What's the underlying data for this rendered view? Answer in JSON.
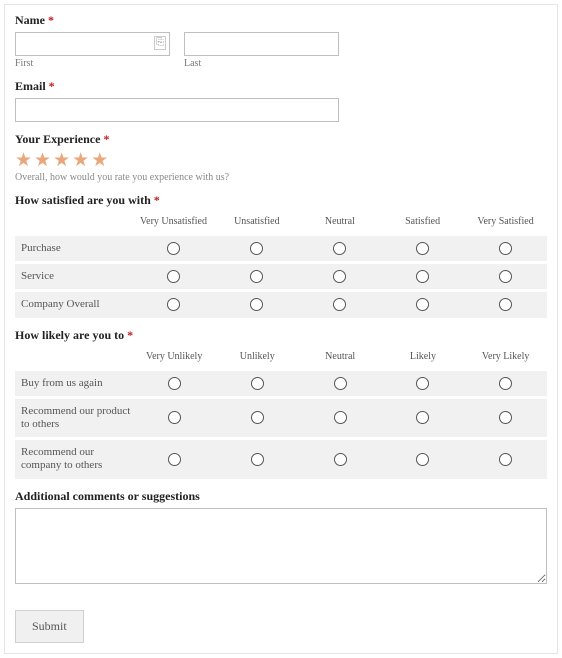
{
  "name": {
    "label": "Name",
    "first_sub": "First",
    "last_sub": "Last"
  },
  "email": {
    "label": "Email"
  },
  "experience": {
    "label": "Your Experience",
    "subtext": "Overall, how would you rate you experience with us?",
    "star_count": 5
  },
  "satisfaction": {
    "label": "How satisfied are you with",
    "columns": [
      "Very Unsatisfied",
      "Unsatisfied",
      "Neutral",
      "Satisfied",
      "Very Satisfied"
    ],
    "rows": [
      "Purchase",
      "Service",
      "Company Overall"
    ]
  },
  "likelihood": {
    "label": "How likely are you to",
    "columns": [
      "Very Unlikely",
      "Unlikely",
      "Neutral",
      "Likely",
      "Very Likely"
    ],
    "rows": [
      "Buy from us again",
      "Recommend our product to others",
      "Recommend our company to others"
    ]
  },
  "comments": {
    "label": "Additional comments or suggestions"
  },
  "submit": {
    "label": "Submit"
  },
  "required_marker": "*",
  "colors": {
    "star": "#e8a87c",
    "required": "#c02020",
    "row_bg": "#f1f1f1",
    "border": "#bfbfbf"
  }
}
